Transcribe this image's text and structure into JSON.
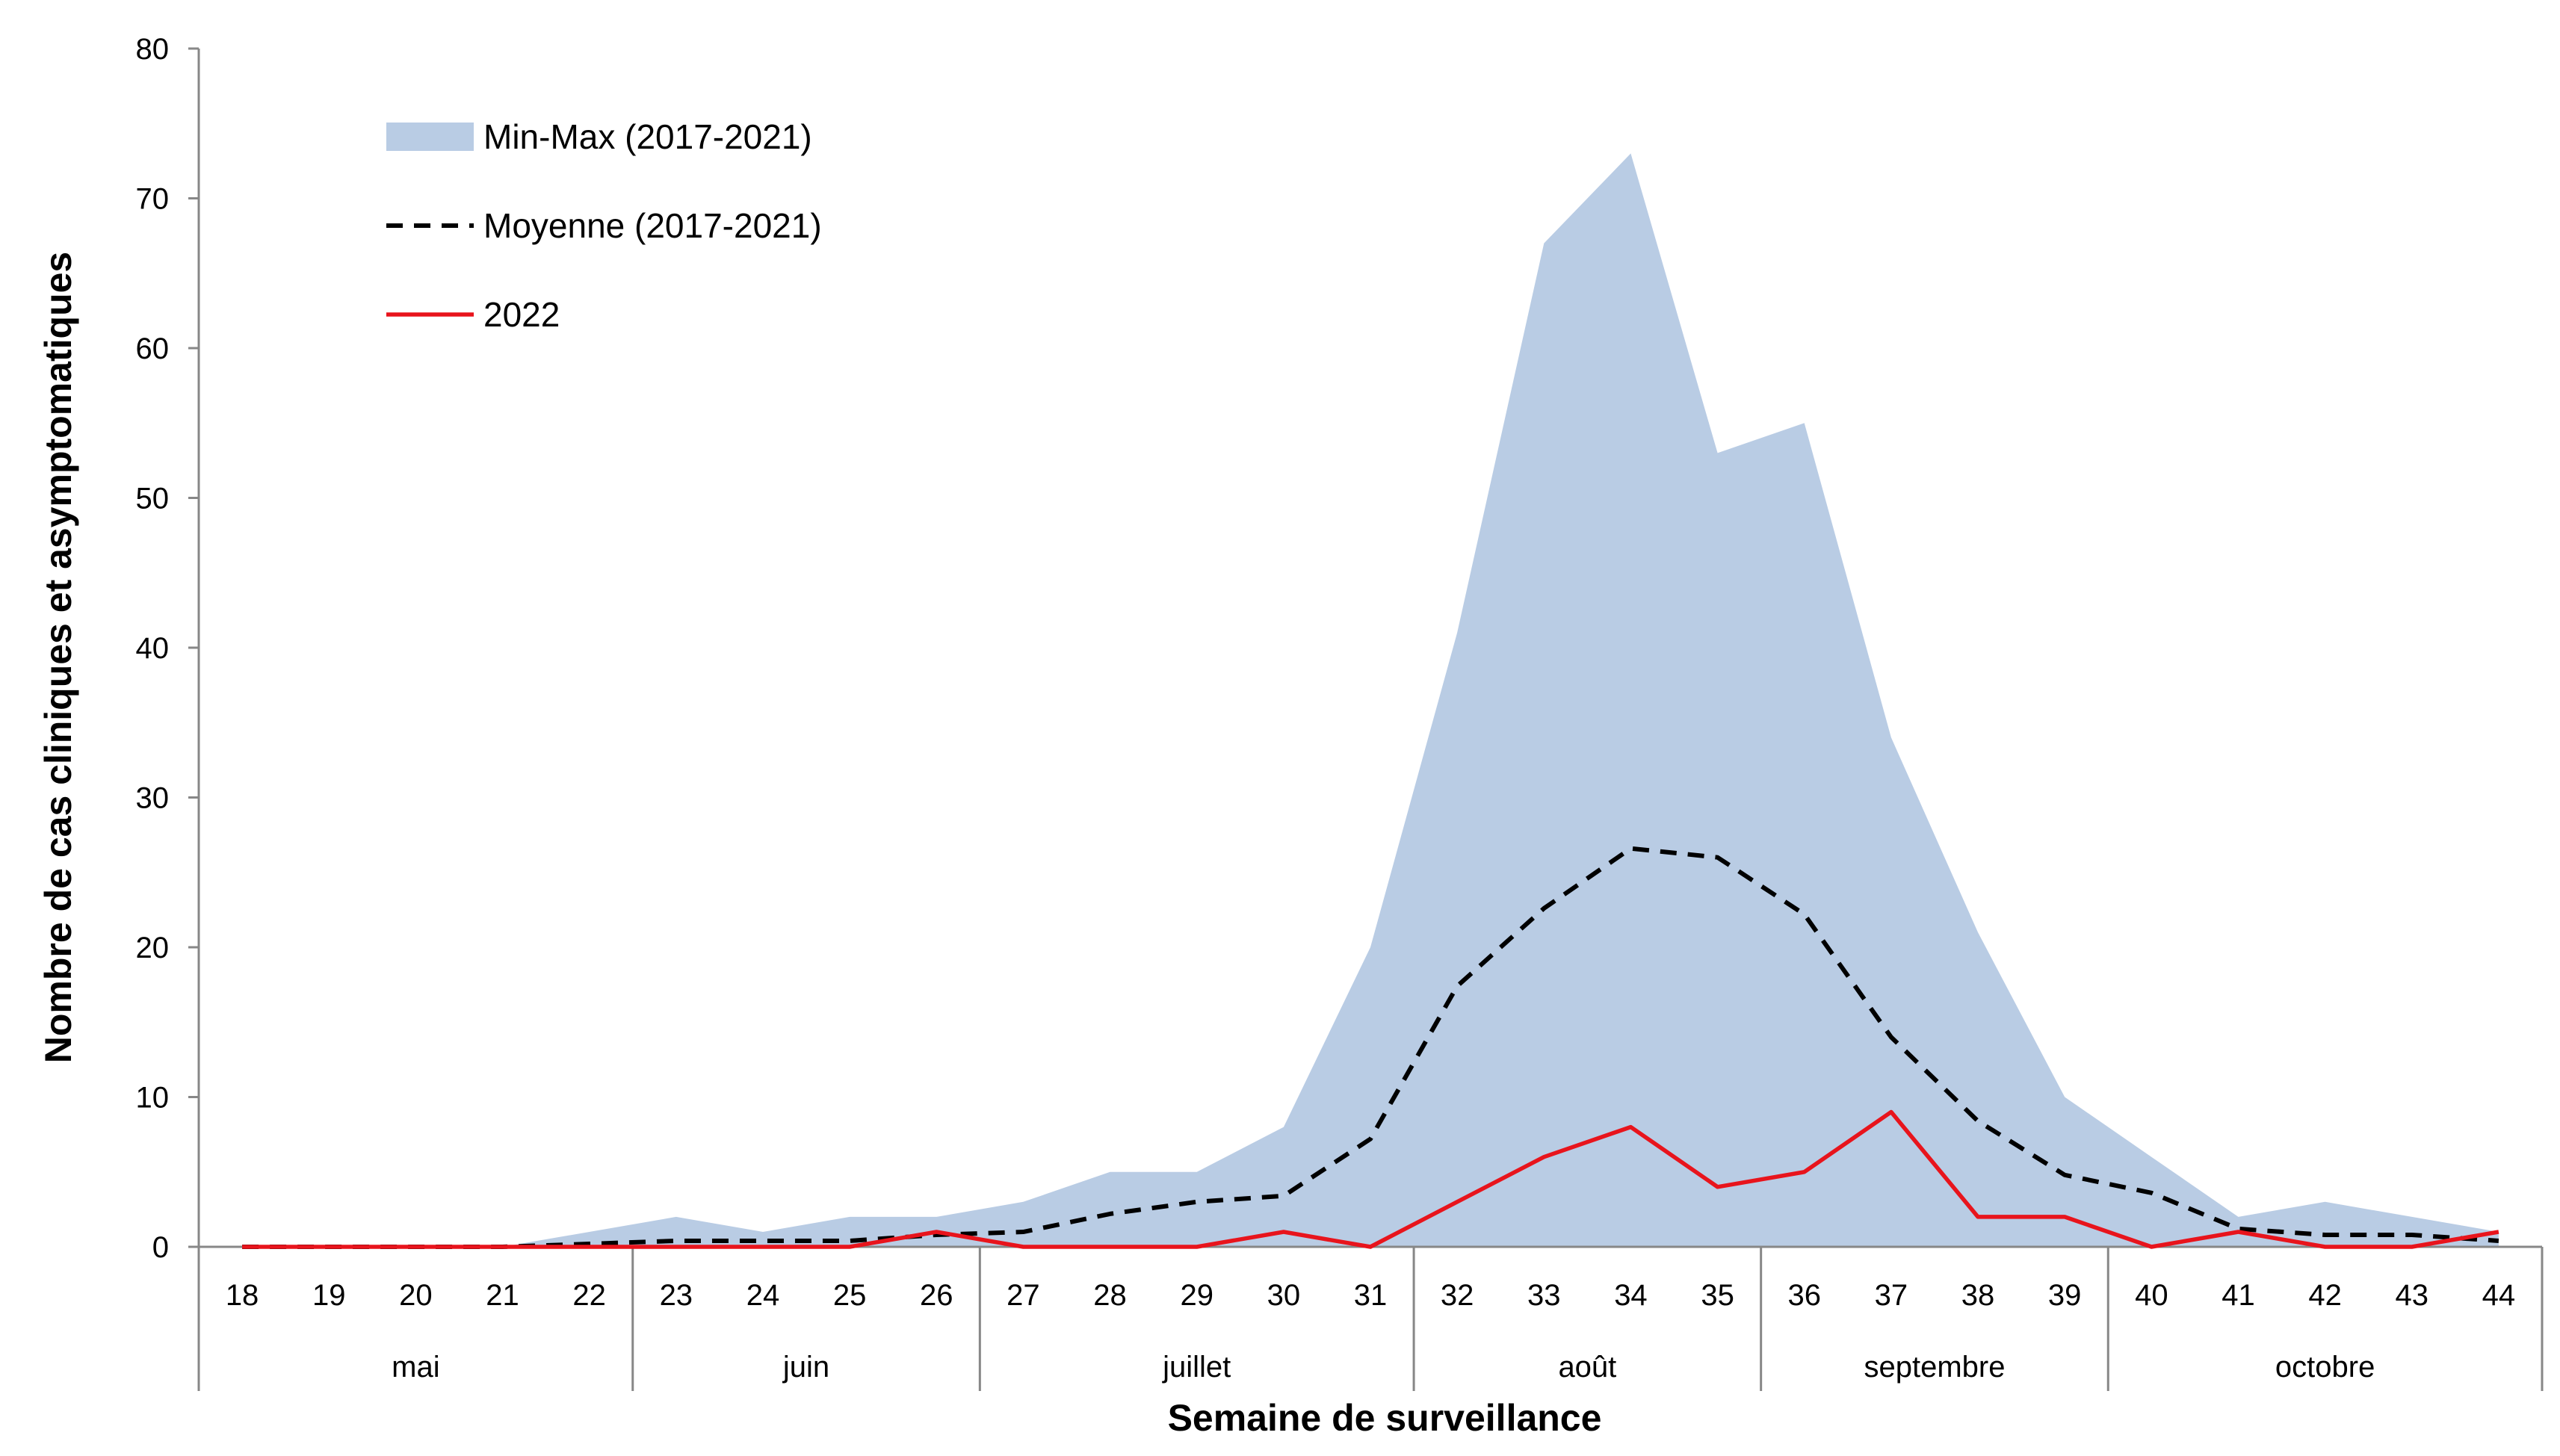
{
  "chart_data": {
    "type": "area",
    "xlabel": "Semaine de surveillance",
    "ylabel": "Nombre de cas cliniques et asymptomatiques",
    "ylim": [
      0,
      80
    ],
    "yticks": [
      0,
      10,
      20,
      30,
      40,
      50,
      60,
      70,
      80
    ],
    "grid": false,
    "legend_position": "top-left",
    "x": [
      "18",
      "19",
      "20",
      "21",
      "22",
      "23",
      "24",
      "25",
      "26",
      "27",
      "28",
      "29",
      "30",
      "31",
      "32",
      "33",
      "34",
      "35",
      "36",
      "37",
      "38",
      "39",
      "40",
      "41",
      "42",
      "43",
      "44"
    ],
    "months": [
      {
        "label": "mai",
        "weeks": [
          "18",
          "19",
          "20",
          "21",
          "22"
        ]
      },
      {
        "label": "juin",
        "weeks": [
          "23",
          "24",
          "25",
          "26"
        ]
      },
      {
        "label": "juillet",
        "weeks": [
          "27",
          "28",
          "29",
          "30",
          "31"
        ]
      },
      {
        "label": "août",
        "weeks": [
          "32",
          "33",
          "34",
          "35"
        ]
      },
      {
        "label": "septembre",
        "weeks": [
          "36",
          "37",
          "38",
          "39"
        ]
      },
      {
        "label": "octobre",
        "weeks": [
          "40",
          "41",
          "42",
          "43",
          "44"
        ]
      }
    ],
    "series": [
      {
        "name": "Min-Max (2017-2021)",
        "kind": "band",
        "color": "#b9cce4",
        "min": [
          0,
          0,
          0,
          0,
          0,
          0,
          0,
          0,
          0,
          0,
          0,
          0,
          0,
          0,
          0,
          0,
          0,
          0,
          0,
          0,
          0,
          0,
          0,
          0,
          0,
          0,
          0
        ],
        "max": [
          0,
          0,
          0,
          0,
          1,
          2,
          1,
          2,
          2,
          3,
          5,
          5,
          8,
          20,
          41,
          67,
          73,
          53,
          55,
          34,
          21,
          10,
          6,
          2,
          3,
          2,
          1
        ]
      },
      {
        "name": "Moyenne (2017-2021)",
        "kind": "line",
        "style": "dashed",
        "color": "#000000",
        "values": [
          0,
          0,
          0,
          0,
          0.2,
          0.4,
          0.4,
          0.4,
          0.8,
          1,
          2.2,
          3,
          3.4,
          7.2,
          17.4,
          22.6,
          26.6,
          26,
          22.2,
          14,
          8.4,
          4.8,
          3.6,
          1.2,
          0.8,
          0.8,
          0.4
        ]
      },
      {
        "name": "2022",
        "kind": "line",
        "style": "solid",
        "color": "#e8141c",
        "values": [
          0,
          0,
          0,
          0,
          0,
          0,
          0,
          0,
          1,
          0,
          0,
          0,
          1,
          0,
          3,
          6,
          8,
          4,
          5,
          9,
          2,
          2,
          0,
          1,
          0,
          0,
          1
        ]
      }
    ]
  }
}
